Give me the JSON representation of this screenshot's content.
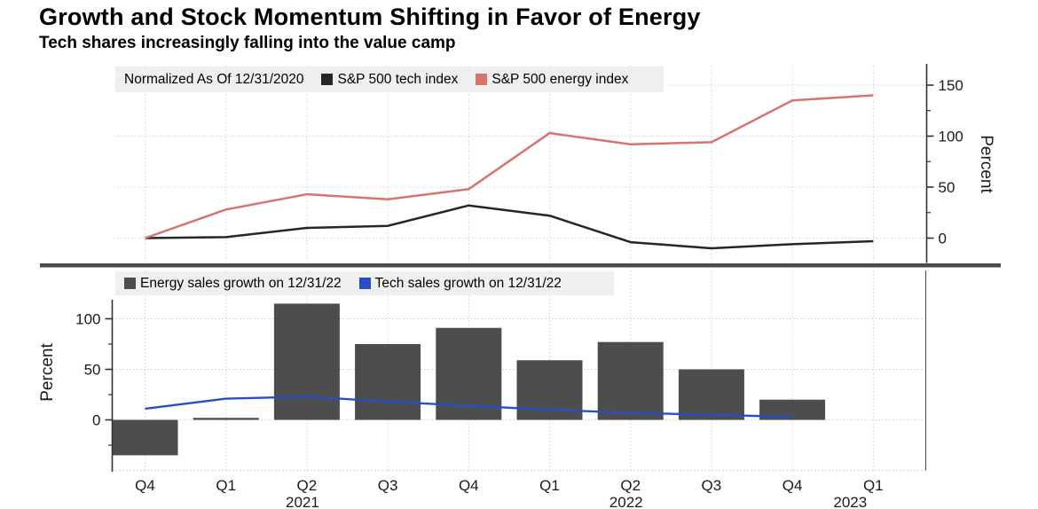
{
  "header": {
    "title": "Growth and Stock Momentum Shifting in Favor of Energy",
    "subtitle": "Tech shares increasingly falling into the value camp"
  },
  "colors": {
    "tech_index_line": "#262626",
    "energy_index_line": "#d9736e",
    "energy_bar": "#4d4d4d",
    "tech_sales_line": "#2a4dc5",
    "grid": "#cfcfcf",
    "axis": "#333333",
    "separator": "#4a4a4a",
    "legend_bg": "#efefef",
    "tick_text": "#1a1a1a"
  },
  "x_axis": {
    "quarters": [
      "Q4",
      "Q1",
      "Q2",
      "Q3",
      "Q4",
      "Q1",
      "Q2",
      "Q3",
      "Q4",
      "Q1"
    ],
    "years": [
      {
        "label": "2021",
        "under_index": 2
      },
      {
        "label": "2022",
        "under_index": 6
      },
      {
        "label": "2023",
        "under_index": 9
      }
    ]
  },
  "chart_data": [
    {
      "type": "line",
      "panel": "top",
      "legend_note": "Normalized As Of 12/31/2020",
      "categories": [
        "Q4 2020",
        "Q1 2021",
        "Q2 2021",
        "Q3 2021",
        "Q4 2021",
        "Q1 2022",
        "Q2 2022",
        "Q3 2022",
        "Q4 2022",
        "Q1 2023"
      ],
      "series": [
        {
          "name": "S&P 500 tech index",
          "color": "#262626",
          "values": [
            0,
            1,
            10,
            12,
            32,
            22,
            -4,
            -10,
            -6,
            -3
          ]
        },
        {
          "name": "S&P 500 energy index",
          "color": "#d9736e",
          "values": [
            0,
            28,
            43,
            38,
            48,
            103,
            92,
            94,
            135,
            140
          ]
        }
      ],
      "xlabel": "",
      "ylabel": "Percent",
      "yticks": [
        0,
        50,
        100,
        150
      ],
      "yticks_minor": [
        25,
        75,
        125
      ],
      "ylim": [
        -25,
        170
      ],
      "axis_side": "right",
      "grid": true,
      "legend_position": "top-left"
    },
    {
      "type": "bar",
      "panel": "bottom",
      "categories": [
        "Q4 2020",
        "Q1 2021",
        "Q2 2021",
        "Q3 2021",
        "Q4 2021",
        "Q1 2022",
        "Q2 2022",
        "Q3 2022",
        "Q4 2022",
        "Q1 2023"
      ],
      "bar_series": {
        "name": "Energy sales growth on 12/31/22",
        "color": "#4d4d4d",
        "values": [
          -35,
          2,
          115,
          75,
          91,
          59,
          77,
          50,
          20,
          null
        ]
      },
      "line_series": {
        "name": "Tech sales growth on 12/31/22",
        "color": "#2a4dc5",
        "values": [
          11,
          21,
          23,
          18,
          14,
          10,
          7,
          5,
          3,
          null
        ]
      },
      "xlabel": "",
      "ylabel": "Percent",
      "yticks": [
        0,
        50,
        100
      ],
      "yticks_minor": [
        -25,
        25,
        75
      ],
      "ylim": [
        -50,
        125
      ],
      "axis_side": "left",
      "grid": true,
      "legend_position": "top-left"
    }
  ]
}
